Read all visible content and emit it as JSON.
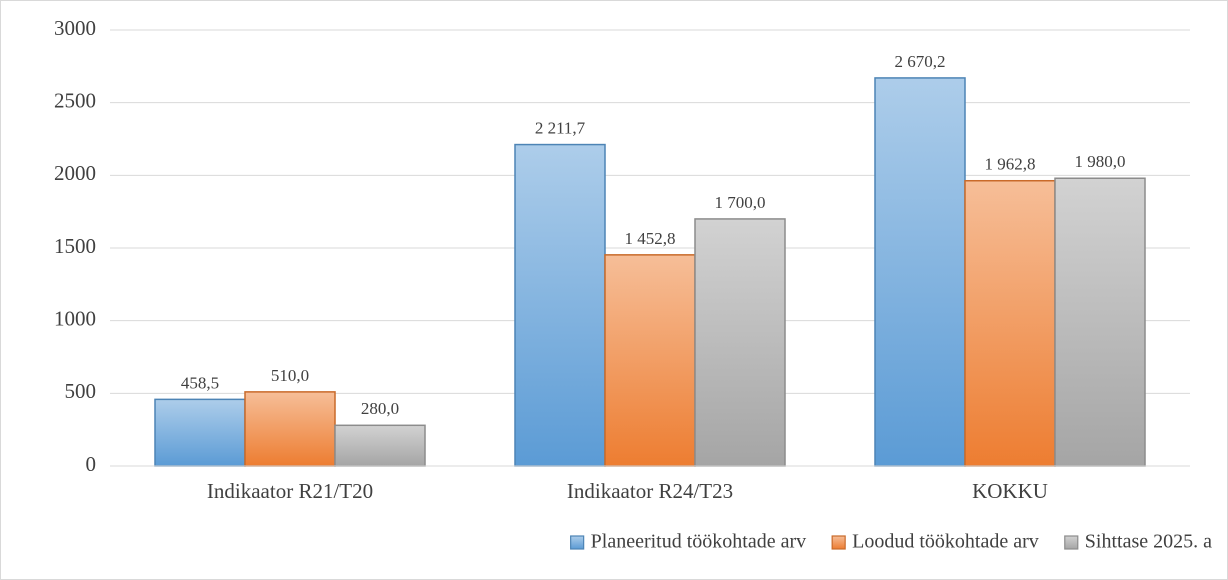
{
  "chart_data": {
    "type": "bar",
    "categories": [
      "Indikaator R21/T20",
      "Indikaator R24/T23",
      "KOKKU"
    ],
    "series": [
      {
        "name": "Planeeritud töökohtade arv",
        "color": "#5b9bd5",
        "values": [
          458.5,
          2211.7,
          2670.2
        ],
        "value_labels": [
          "458,5",
          "2 211,7",
          "2 670,2"
        ]
      },
      {
        "name": "Loodud töökohtade arv",
        "color": "#ed7d31",
        "values": [
          510.0,
          1452.8,
          1962.8
        ],
        "value_labels": [
          "510,0",
          "1 452,8",
          "1 962,8"
        ]
      },
      {
        "name": "Sihttase 2025. a",
        "color": "#a5a5a5",
        "values": [
          280.0,
          1700.0,
          1980.0
        ],
        "value_labels": [
          "280,0",
          "1 700,0",
          "1 980,0"
        ]
      }
    ],
    "ylim": [
      0,
      3000
    ],
    "yticks": [
      0,
      500,
      1000,
      1500,
      2000,
      2500,
      3000
    ],
    "grid": true,
    "legend": "bottom"
  }
}
